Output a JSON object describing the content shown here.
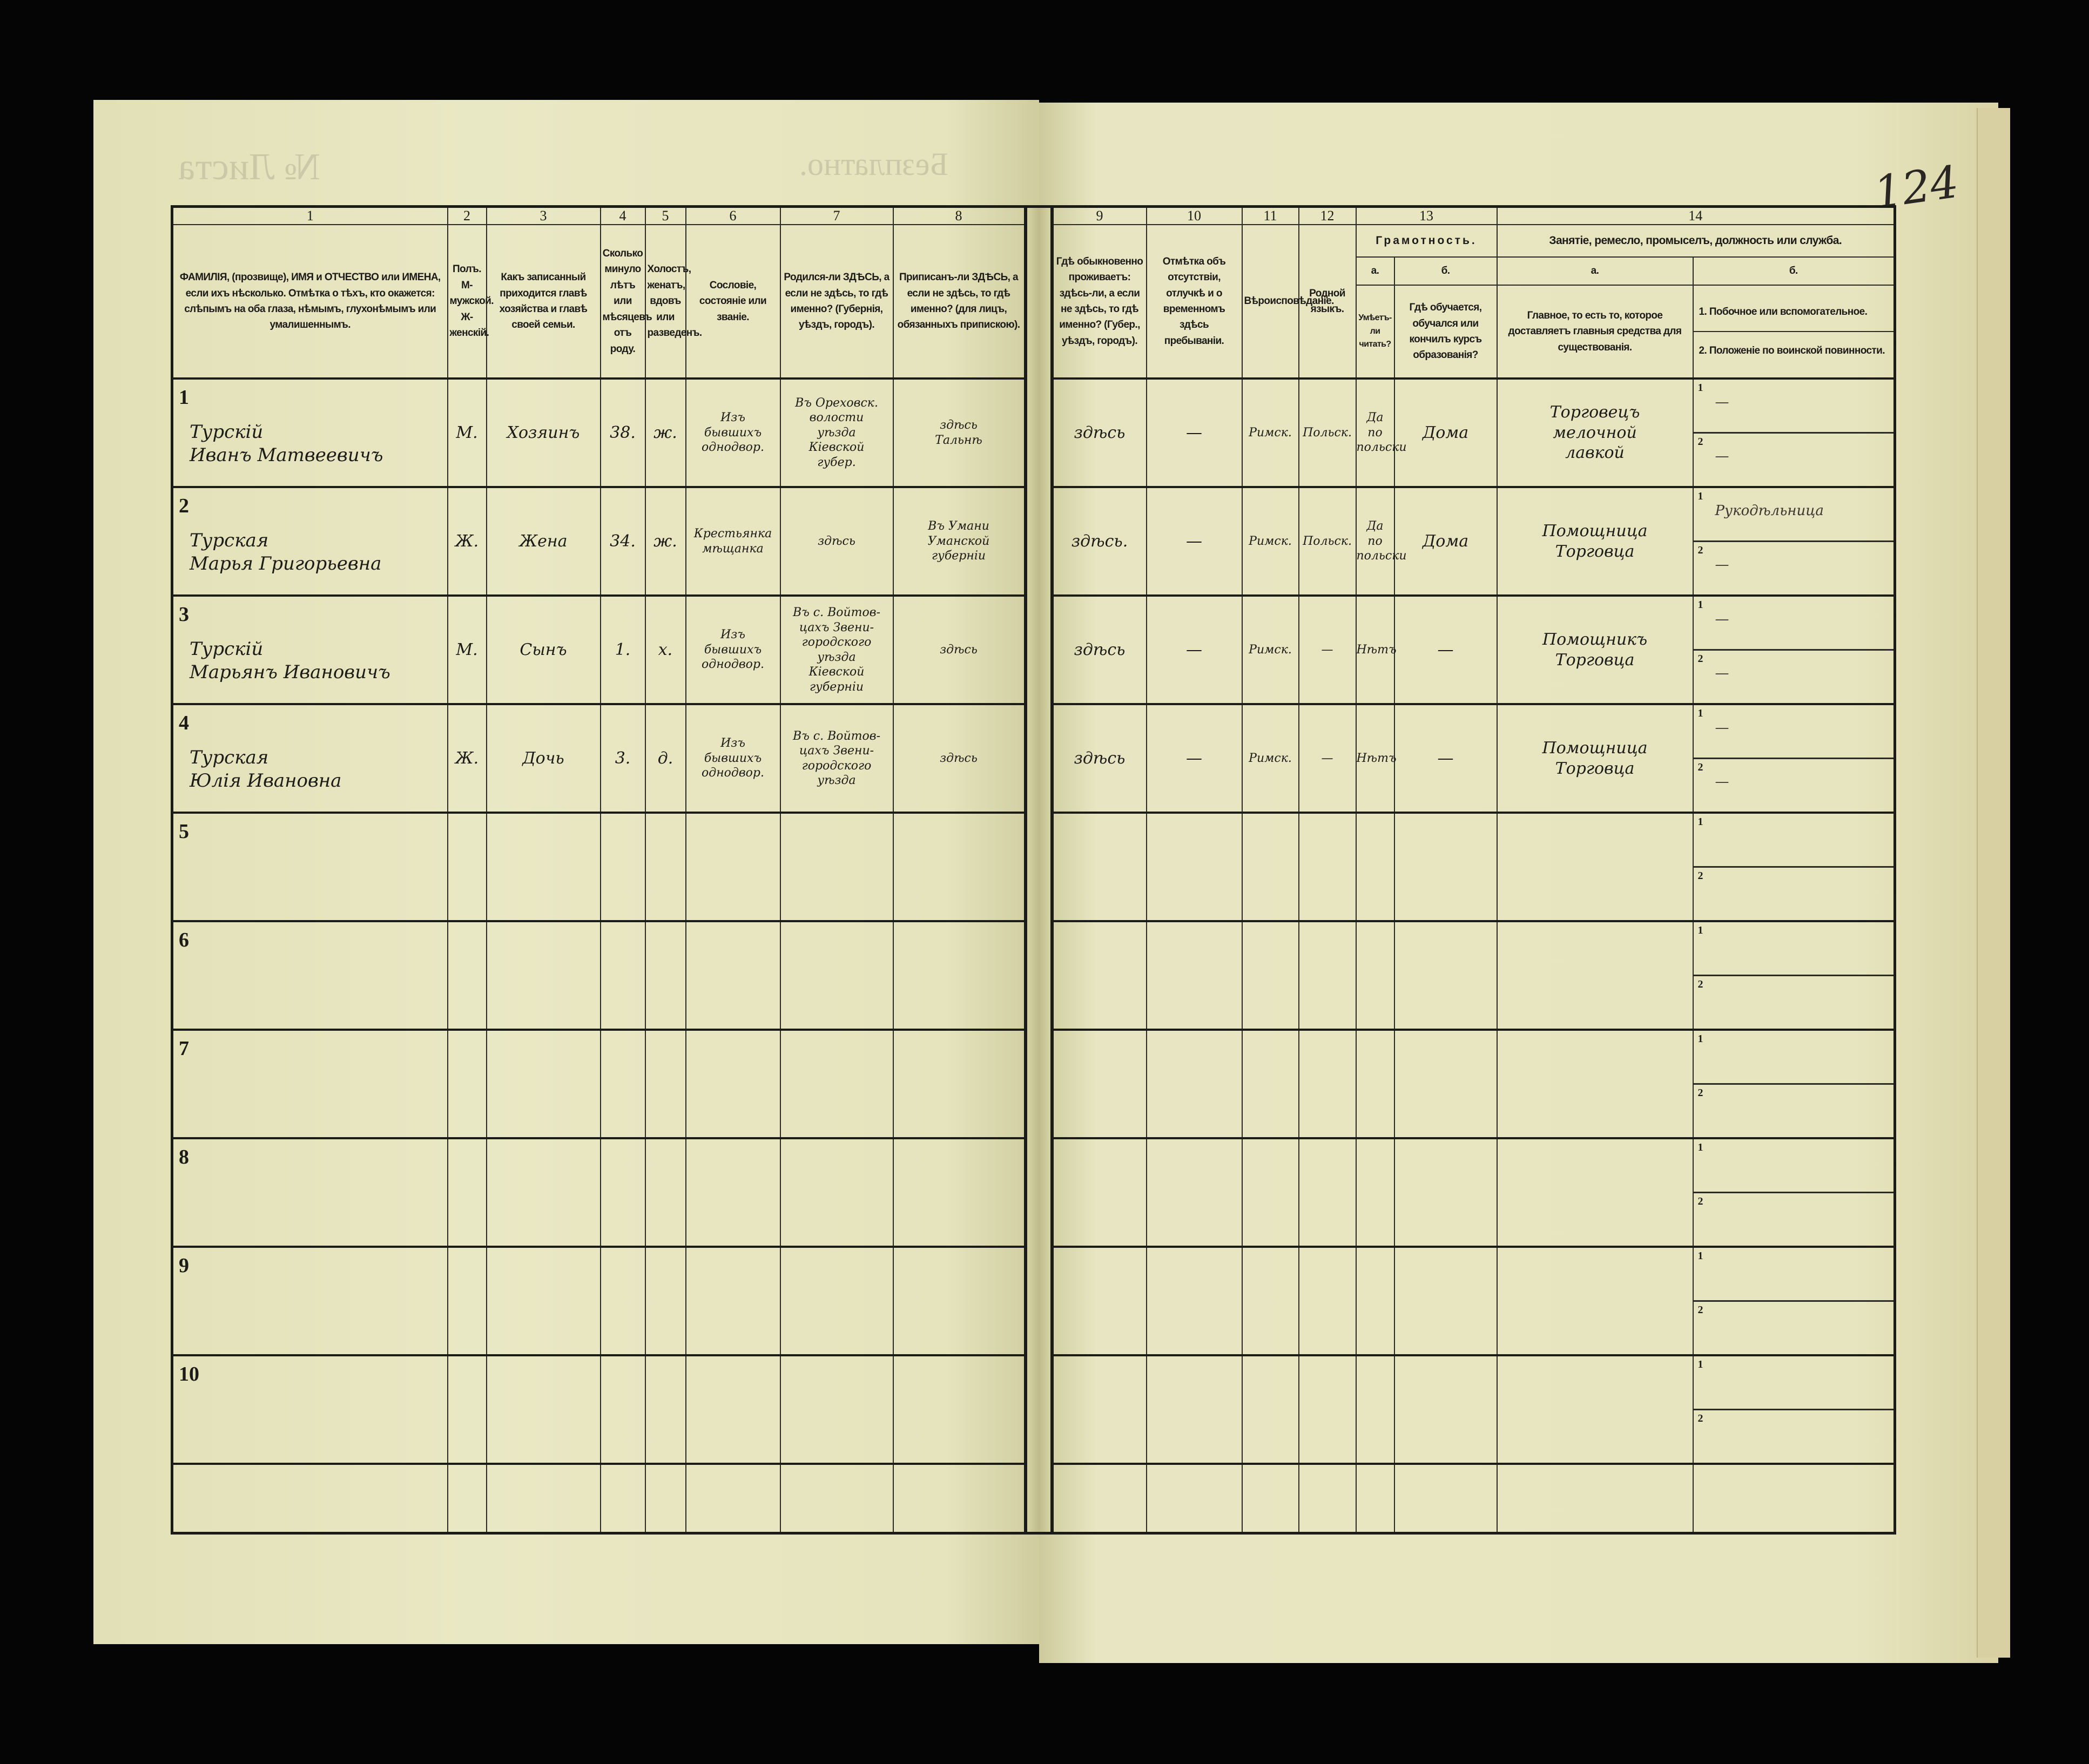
{
  "document": {
    "page_number": "124",
    "bleed_through": {
      "sheet_no": "№ Листа",
      "free": "Безплатно."
    }
  },
  "header": {
    "col_numbers": [
      "1",
      "2",
      "3",
      "4",
      "5",
      "6",
      "7",
      "8",
      "9",
      "10",
      "11",
      "12",
      "13",
      "14"
    ],
    "col1": "ФАМИЛІЯ, (прозвище), ИМЯ и ОТЧЕСТВО или ИМЕНА, если ихъ нѣсколько. Отмѣтка о тѣхъ, кто окажется: слѣпымъ на оба глаза, нѣмымъ, глухонѣмымъ или умалишеннымъ.",
    "col2": "Полъ. М-мужской. Ж-женскій.",
    "col3": "Какъ записанный приходится главѣ хозяйства и главѣ своей семьи.",
    "col4": "Сколько минуло лѣтъ или мѣсяцевъ отъ роду.",
    "col5": "Холостъ, женатъ, вдовъ или разведенъ.",
    "col6": "Сословіе, состояніе или званіе.",
    "col7": "Родился-ли ЗДѢСЬ, а если не здѣсь, то гдѣ именно? (Губернія, уѣздъ, городъ).",
    "col8": "Приписанъ-ли ЗДѢСЬ, а если не здѣсь, то гдѣ именно? (для лицъ, обязанныхъ припискою).",
    "col9": "Гдѣ обыкновенно проживаетъ: здѣсь-ли, а если не здѣсь, то гдѣ именно? (Губер., уѣздъ, городъ).",
    "col10": "Отмѣтка объ отсутствіи, отлучкѣ и о временномъ здѣсь пребываніи.",
    "col11": "Вѣроисповѣданіе.",
    "col12": "Родной языкъ.",
    "col13": "Грамотность.",
    "col13a_label": "а.",
    "col13a": "Умѣетъ-ли читать?",
    "col13b_label": "б.",
    "col13b": "Гдѣ обучается, обучался или кончилъ курсъ образованія?",
    "col14": "Занятіе, ремесло, промыселъ, должность или служба.",
    "col14a_label": "а.",
    "col14a": "Главное, то есть то, которое доставляетъ главныя средства для существованія.",
    "col14b_label": "б.",
    "col14b_1": "1. Побочное или вспомогательное.",
    "col14b_2": "2. Положеніе по воинской повинности."
  },
  "rows": [
    {
      "n": "1",
      "name": "Турскій\nИванъ Матвеевичъ",
      "sex": "М.",
      "relation": "Хозяинъ",
      "age": "38.",
      "marital": "ж.",
      "estate": "Изъ\nбывшихъ\nоднодвор.",
      "born": "Въ Ореховск.\nволости\nуѣзда\nКіевской\nгубер.",
      "registered": "здѣсь\nТальнѣ",
      "residence": "здѣсь",
      "absence": "—",
      "religion": "Римск.",
      "language": "Польск.",
      "literate": "Да\nпо\nпольски",
      "education": "Дома",
      "occupation": "Торговецъ\nмелочной\nлавкой",
      "side": "—",
      "military": "—"
    },
    {
      "n": "2",
      "name": "Турская\nМарья Григорьевна",
      "sex": "Ж.",
      "relation": "Жена",
      "age": "34.",
      "marital": "ж.",
      "estate": "Крестьянка\nмѣщанка",
      "born": "здѣсь",
      "registered": "Въ Умани\nУманской\nгуберніи",
      "residence": "здѣсь.",
      "absence": "—",
      "religion": "Римск.",
      "language": "Польск.",
      "literate": "Да\nпо\nпольски",
      "education": "Дома",
      "occupation": "Помощница\nТорговца",
      "side": "Рукодѣльница",
      "military": "—"
    },
    {
      "n": "3",
      "name": "Турскій\nМарьянъ Ивановичъ",
      "sex": "М.",
      "relation": "Сынъ",
      "age": "1.",
      "marital": "х.",
      "estate": "Изъ\nбывшихъ\nоднодвор.",
      "born": "Въ с. Войтов-\nцахъ Звени-\nгородского\nуѣзда\nКіевской\nгуберніи",
      "registered": "здѣсь",
      "residence": "здѣсь",
      "absence": "—",
      "religion": "Римск.",
      "language": "—",
      "literate": "Нѣтъ",
      "education": "—",
      "occupation": "Помощникъ\nТорговца",
      "side": "—",
      "military": "—"
    },
    {
      "n": "4",
      "name": "Турская\nЮлія Ивановна",
      "sex": "Ж.",
      "relation": "Дочь",
      "age": "3.",
      "marital": "д.",
      "estate": "Изъ\nбывшихъ\nоднодвор.",
      "born": "Въ с. Войтов-\nцахъ Звени-\nгородского\nуѣзда",
      "registered": "здѣсь",
      "residence": "здѣсь",
      "absence": "—",
      "religion": "Римск.",
      "language": "—",
      "literate": "Нѣтъ",
      "education": "—",
      "occupation": "Помощница\nТорговца",
      "side": "—",
      "military": "—"
    },
    {
      "n": "5"
    },
    {
      "n": "6"
    },
    {
      "n": "7"
    },
    {
      "n": "8"
    },
    {
      "n": "9"
    },
    {
      "n": "10"
    }
  ],
  "sub_labels": [
    "1",
    "2"
  ]
}
